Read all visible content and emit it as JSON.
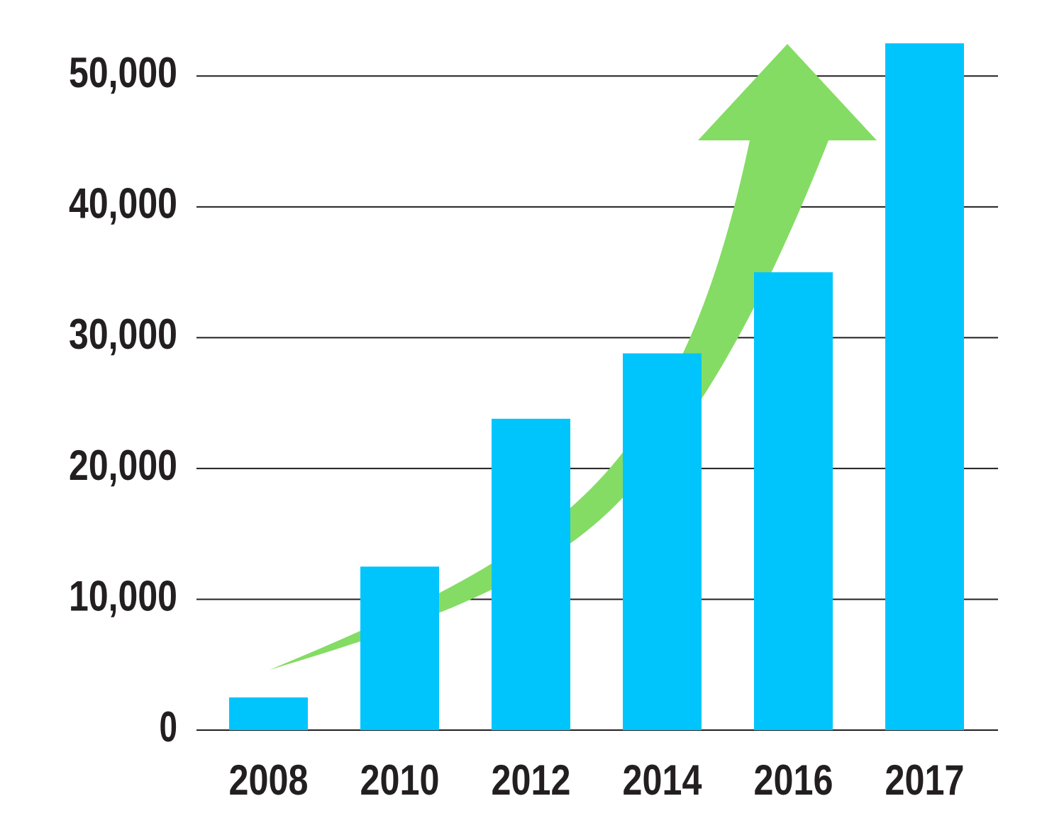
{
  "chart_data": {
    "type": "bar",
    "categories": [
      "2008",
      "2010",
      "2012",
      "2014",
      "2016",
      "2017"
    ],
    "values": [
      2500,
      12500,
      23800,
      28800,
      35000,
      52500
    ],
    "color": "#00c5fd",
    "ylim": [
      0,
      55000
    ],
    "yticks": [
      0,
      {
        "value": 10000,
        "label": "10,000"
      },
      {
        "value": 20000,
        "label": "20,000"
      },
      {
        "value": 30000,
        "label": "30,000"
      },
      {
        "value": 40000,
        "label": "40,000"
      },
      {
        "value": 50000,
        "label": "50,000"
      }
    ],
    "grid": true
  }
}
